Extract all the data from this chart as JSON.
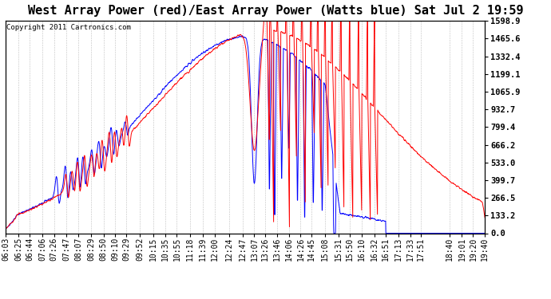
{
  "title": "West Array Power (red)/East Array Power (Watts blue) Sat Jul 2 19:59",
  "copyright": "Copyright 2011 Cartronics.com",
  "yticks": [
    0.0,
    133.2,
    266.5,
    399.7,
    533.0,
    666.2,
    799.4,
    932.7,
    1065.9,
    1199.1,
    1332.4,
    1465.6,
    1598.9
  ],
  "ymax": 1598.9,
  "ymin": 0.0,
  "color_red": "#ff0000",
  "color_blue": "#0000ff",
  "bg_color": "#ffffff",
  "grid_color": "#b0b0b0",
  "title_fontsize": 11,
  "copyright_fontsize": 6.5,
  "tick_fontsize": 7,
  "x_tick_labels": [
    "06:03",
    "06:25",
    "06:44",
    "07:06",
    "07:26",
    "07:47",
    "08:07",
    "08:29",
    "08:50",
    "09:10",
    "09:29",
    "09:52",
    "10:15",
    "10:35",
    "10:55",
    "11:18",
    "11:39",
    "12:00",
    "12:24",
    "12:47",
    "13:07",
    "13:26",
    "13:46",
    "14:06",
    "14:26",
    "14:45",
    "15:08",
    "15:31",
    "15:50",
    "16:10",
    "16:32",
    "16:51",
    "17:13",
    "17:33",
    "17:51",
    "18:40",
    "19:01",
    "19:20",
    "19:40"
  ],
  "linewidth": 0.7
}
